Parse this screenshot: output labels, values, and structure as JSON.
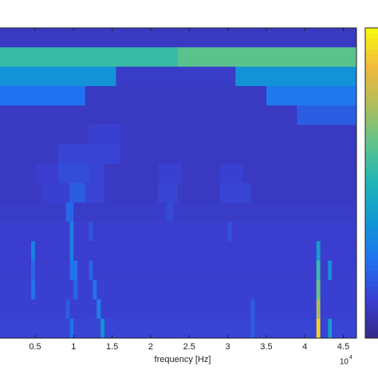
{
  "chart_data": {
    "type": "heatmap",
    "x_label": "frequency [Hz]",
    "x_multiplier_base": "10",
    "x_multiplier_exp": "4",
    "xlim": [
      0.045,
      4.67
    ],
    "xticks": [
      0.5,
      1,
      1.5,
      2,
      2.5,
      3,
      3.5,
      4,
      4.5
    ],
    "clim": [
      0,
      1
    ],
    "colorscale": [
      "#352a87",
      "#3a3ed0",
      "#2172f0",
      "#1296d4",
      "#1fb4b8",
      "#5dc38c",
      "#b0bd5c",
      "#f0ba3c",
      "#f9fb0e"
    ],
    "rows": [
      {
        "bins": [
          0.045,
          4.67
        ],
        "values": [
          0.1
        ]
      },
      {
        "bins": [
          0.045,
          2.35,
          4.67
        ],
        "values": [
          0.55,
          0.62
        ]
      },
      {
        "bins": [
          0.045,
          1.55,
          3.1,
          4.67
        ],
        "values": [
          0.36,
          0.11,
          0.36
        ]
      },
      {
        "bins": [
          0.045,
          1.15,
          3.5,
          4.67
        ],
        "values": [
          0.25,
          0.1,
          0.27
        ]
      },
      {
        "bins": [
          0.045,
          3.9,
          4.67
        ],
        "values": [
          0.1,
          0.2
        ]
      },
      {
        "bins": [
          0.045,
          1.2,
          1.6,
          4.67
        ],
        "values": [
          0.1,
          0.13,
          0.1
        ]
      },
      {
        "bins": [
          0.045,
          0.8,
          1.6,
          4.67
        ],
        "values": [
          0.1,
          0.14,
          0.1
        ]
      },
      {
        "bins": [
          0.045,
          0.5,
          0.8,
          1.2,
          1.4,
          2.1,
          2.4,
          2.9,
          3.2,
          4.67
        ],
        "values": [
          0.1,
          0.12,
          0.16,
          0.14,
          0.1,
          0.13,
          0.1,
          0.13,
          0.1
        ]
      },
      {
        "bins": [
          0.045,
          0.6,
          0.95,
          1.15,
          1.4,
          2.1,
          2.35,
          2.9,
          3.3,
          4.67
        ],
        "values": [
          0.1,
          0.13,
          0.2,
          0.14,
          0.1,
          0.14,
          0.1,
          0.14,
          0.1
        ]
      },
      {
        "bins": [
          0.045,
          0.9,
          1.0,
          2.2,
          2.3,
          4.67
        ],
        "values": [
          0.11,
          0.22,
          0.11,
          0.15,
          0.11
        ]
      },
      {
        "bins": [
          0.045,
          0.95,
          1.0,
          1.2,
          1.25,
          3.0,
          3.05,
          4.67
        ],
        "values": [
          0.12,
          0.3,
          0.12,
          0.18,
          0.12,
          0.17,
          0.12
        ]
      },
      {
        "bins": [
          0.045,
          0.45,
          0.5,
          0.95,
          1.0,
          4.15,
          4.2,
          4.67
        ],
        "values": [
          0.12,
          0.3,
          0.12,
          0.3,
          0.12,
          0.4,
          0.12
        ]
      },
      {
        "bins": [
          0.045,
          0.45,
          0.5,
          0.95,
          1.05,
          1.2,
          1.25,
          4.15,
          4.2,
          4.3,
          4.35,
          4.67
        ],
        "values": [
          0.12,
          0.22,
          0.12,
          0.25,
          0.12,
          0.22,
          0.12,
          0.55,
          0.12,
          0.35,
          0.12
        ]
      },
      {
        "bins": [
          0.045,
          0.45,
          0.5,
          1.0,
          1.05,
          1.25,
          1.3,
          4.15,
          4.2,
          4.67
        ],
        "values": [
          0.13,
          0.25,
          0.13,
          0.22,
          0.13,
          0.25,
          0.13,
          0.65,
          0.13
        ]
      },
      {
        "bins": [
          0.045,
          0.9,
          0.95,
          1.3,
          1.35,
          3.3,
          3.35,
          4.15,
          4.2,
          4.67
        ],
        "values": [
          0.13,
          0.2,
          0.13,
          0.3,
          0.13,
          0.2,
          0.13,
          0.75,
          0.13
        ]
      },
      {
        "bins": [
          0.045,
          0.95,
          1.0,
          1.35,
          1.4,
          3.3,
          3.35,
          4.15,
          4.2,
          4.3,
          4.35,
          4.67
        ],
        "values": [
          0.14,
          0.25,
          0.14,
          0.35,
          0.14,
          0.2,
          0.14,
          0.92,
          0.14,
          0.4,
          0.14
        ]
      }
    ]
  }
}
